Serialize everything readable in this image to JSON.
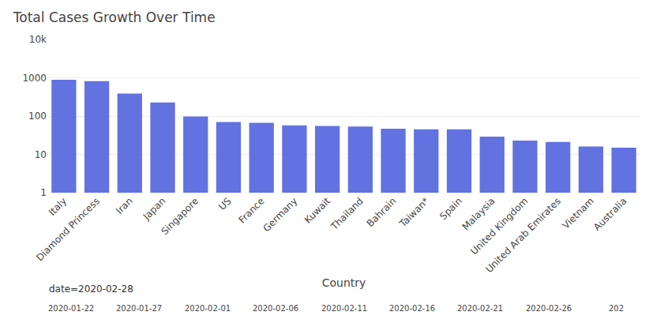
{
  "chart_data": {
    "type": "bar",
    "title": "Total Cases Growth Over Time",
    "xlabel": "Country",
    "categories": [
      "Italy",
      "Diamond Princess",
      "Iran",
      "Japan",
      "Singapore",
      "US",
      "France",
      "Germany",
      "Kuwait",
      "Thailand",
      "Bahrain",
      "Taiwan*",
      "Spain",
      "Malaysia",
      "United Kingdom",
      "United Arab Emirates",
      "Vietnam",
      "Australia"
    ],
    "values": [
      888,
      821,
      388,
      228,
      98,
      70,
      67,
      57,
      55,
      53,
      47,
      45,
      45,
      29,
      23,
      21,
      16,
      15
    ],
    "color": "#6272e0",
    "log": "y",
    "ylim": [
      1,
      10000
    ],
    "yticks": [
      1,
      10,
      100,
      1000,
      {
        "value": 10000,
        "label": "10k"
      }
    ],
    "grid": true,
    "annotations": [
      "date=2020-02-28",
      "2020-01-22",
      "2020-01-27",
      "2020-02-01",
      "2020-02-06",
      "2020-02-11",
      "2020-02-16",
      "2020-02-21",
      "2020-02-26",
      "202"
    ]
  }
}
